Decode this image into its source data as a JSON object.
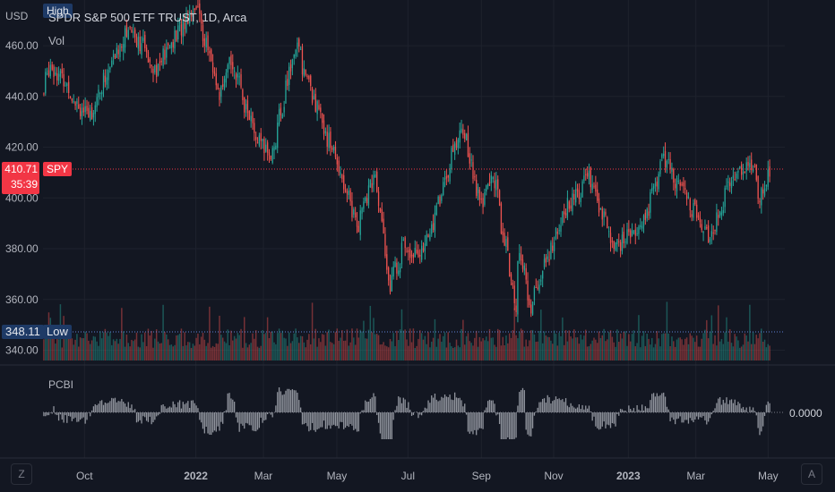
{
  "legend": {
    "title": "SPDR S&P 500 ETF TRUST, 1D, Arca",
    "vol_label": "Vol"
  },
  "indicator": {
    "name": "PCBI",
    "value_label": "0.0000"
  },
  "axis": {
    "currency": "USD",
    "z_button": "Z",
    "a_button": "A"
  },
  "tags": {
    "high": "High",
    "low": "Low",
    "low_value": "348.11",
    "symbol": "SPY",
    "last_price": "410.71",
    "countdown": "35:39"
  },
  "colors": {
    "up": "#26a69a",
    "down": "#ef5350",
    "background": "#131722",
    "grid": "#1e222d",
    "price_line": "#f23645",
    "low_line": "#2962ff",
    "pcbi": "#b2b5be"
  },
  "chart_data": {
    "type": "candlestick",
    "symbol": "SPY",
    "interval": "1D",
    "exchange": "Arca",
    "y_ticks": [
      460,
      440,
      420,
      400,
      380,
      360,
      340
    ],
    "y_tick_labels": [
      "460.00",
      "440.00",
      "420.00",
      "400.00",
      "380.00",
      "360.00",
      "340.00"
    ],
    "ylim": [
      337,
      478
    ],
    "x_ticks": [
      "Oct",
      "2022",
      "Mar",
      "May",
      "Jul",
      "Sep",
      "Nov",
      "2023",
      "Mar",
      "May"
    ],
    "last_price": 410.71,
    "low_marker": 348.11,
    "close_path": [
      {
        "date": "2021-08-27",
        "close": 441
      },
      {
        "date": "2021-09-02",
        "close": 453
      },
      {
        "date": "2021-09-14",
        "close": 446
      },
      {
        "date": "2021-10-04",
        "close": 431
      },
      {
        "date": "2021-10-22",
        "close": 451
      },
      {
        "date": "2021-11-08",
        "close": 468
      },
      {
        "date": "2021-12-01",
        "close": 451
      },
      {
        "date": "2022-01-03",
        "close": 477
      },
      {
        "date": "2022-01-24",
        "close": 439
      },
      {
        "date": "2022-02-02",
        "close": 455
      },
      {
        "date": "2022-02-24",
        "close": 422
      },
      {
        "date": "2022-03-08",
        "close": 417
      },
      {
        "date": "2022-03-29",
        "close": 461
      },
      {
        "date": "2022-04-14",
        "close": 437
      },
      {
        "date": "2022-05-06",
        "close": 410
      },
      {
        "date": "2022-05-20",
        "close": 389
      },
      {
        "date": "2022-06-03",
        "close": 410
      },
      {
        "date": "2022-06-16",
        "close": 366
      },
      {
        "date": "2022-06-28",
        "close": 381
      },
      {
        "date": "2022-07-14",
        "close": 378
      },
      {
        "date": "2022-08-16",
        "close": 429
      },
      {
        "date": "2022-09-01",
        "close": 397
      },
      {
        "date": "2022-09-12",
        "close": 410
      },
      {
        "date": "2022-09-30",
        "close": 357
      },
      {
        "date": "2022-10-04",
        "close": 379
      },
      {
        "date": "2022-10-13",
        "close": 357
      },
      {
        "date": "2022-11-10",
        "close": 394
      },
      {
        "date": "2022-12-01",
        "close": 408
      },
      {
        "date": "2022-12-22",
        "close": 381
      },
      {
        "date": "2022-12-30",
        "close": 383
      },
      {
        "date": "2023-01-18",
        "close": 392
      },
      {
        "date": "2023-02-02",
        "close": 416
      },
      {
        "date": "2023-02-24",
        "close": 398
      },
      {
        "date": "2023-03-13",
        "close": 385
      },
      {
        "date": "2023-04-03",
        "close": 410
      },
      {
        "date": "2023-04-19",
        "close": 414
      },
      {
        "date": "2023-04-25",
        "close": 400
      },
      {
        "date": "2023-05-03",
        "close": 410.71
      }
    ]
  }
}
